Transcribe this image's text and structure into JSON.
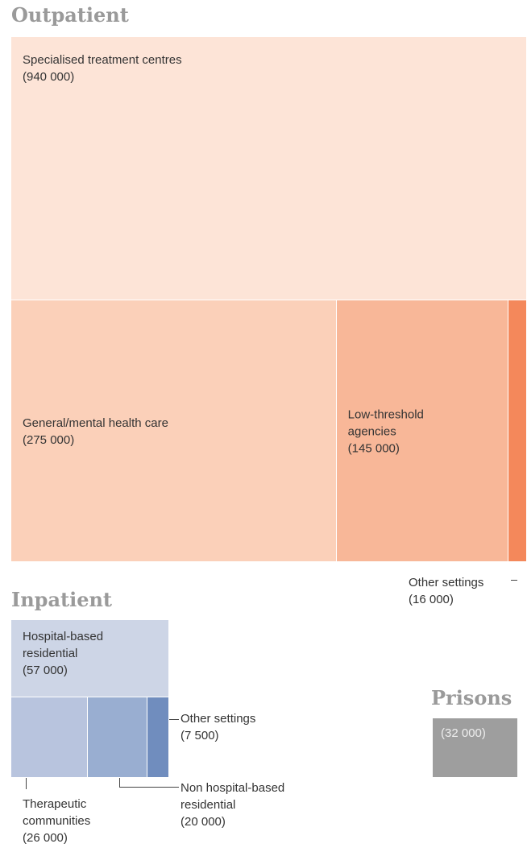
{
  "chart_data": {
    "type": "treemap",
    "groups": [
      {
        "name": "Outpatient",
        "categories": [
          "Specialised treatment centres",
          "General/mental health care",
          "Low-threshold agencies",
          "Other settings"
        ],
        "values": [
          940000,
          275000,
          145000,
          16000
        ],
        "value_labels": [
          "(940 000)",
          "(275 000)",
          "(145 000)",
          "(16 000)"
        ],
        "colors": [
          "#fde4d7",
          "#fbd0b9",
          "#f8b798",
          "#f4885b"
        ]
      },
      {
        "name": "Inpatient",
        "categories": [
          "Hospital-based residential",
          "Therapeutic communities",
          "Non hospital-based residential",
          "Other settings"
        ],
        "values": [
          57000,
          26000,
          20000,
          7500
        ],
        "value_labels": [
          "(57 000)",
          "(26 000)",
          "(20 000)",
          "(7 500)"
        ],
        "colors": [
          "#cdd5e6",
          "#b8c4de",
          "#99aed1",
          "#708dbe"
        ]
      },
      {
        "name": "Prisons",
        "values": [
          32000
        ],
        "value_labels": [
          "(32 000)"
        ],
        "colors": [
          "#9e9e9e"
        ]
      }
    ]
  }
}
